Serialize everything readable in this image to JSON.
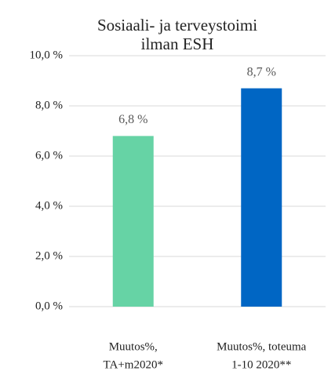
{
  "chart_data": {
    "type": "bar",
    "title": [
      "Sosiaali- ja terveystoimi",
      "ilman ESH"
    ],
    "categories": [
      [
        "Muutos%,",
        "TA+m2020*"
      ],
      [
        "Muutos%, toteuma",
        "1-10 2020**"
      ]
    ],
    "values": [
      6.8,
      8.7
    ],
    "value_labels": [
      "6,8 %",
      "8,7 %"
    ],
    "colors": [
      "#66d3a5",
      "#0066c4"
    ],
    "ylim": [
      0,
      10
    ],
    "yticks": [
      {
        "value": 0,
        "label": "0,0 %"
      },
      {
        "value": 2,
        "label": "2,0 %"
      },
      {
        "value": 4,
        "label": "4,0 %"
      },
      {
        "value": 6,
        "label": "6,0 %"
      },
      {
        "value": 8,
        "label": "8,0 %"
      },
      {
        "value": 10,
        "label": "10,0 %"
      }
    ],
    "grid": true
  }
}
